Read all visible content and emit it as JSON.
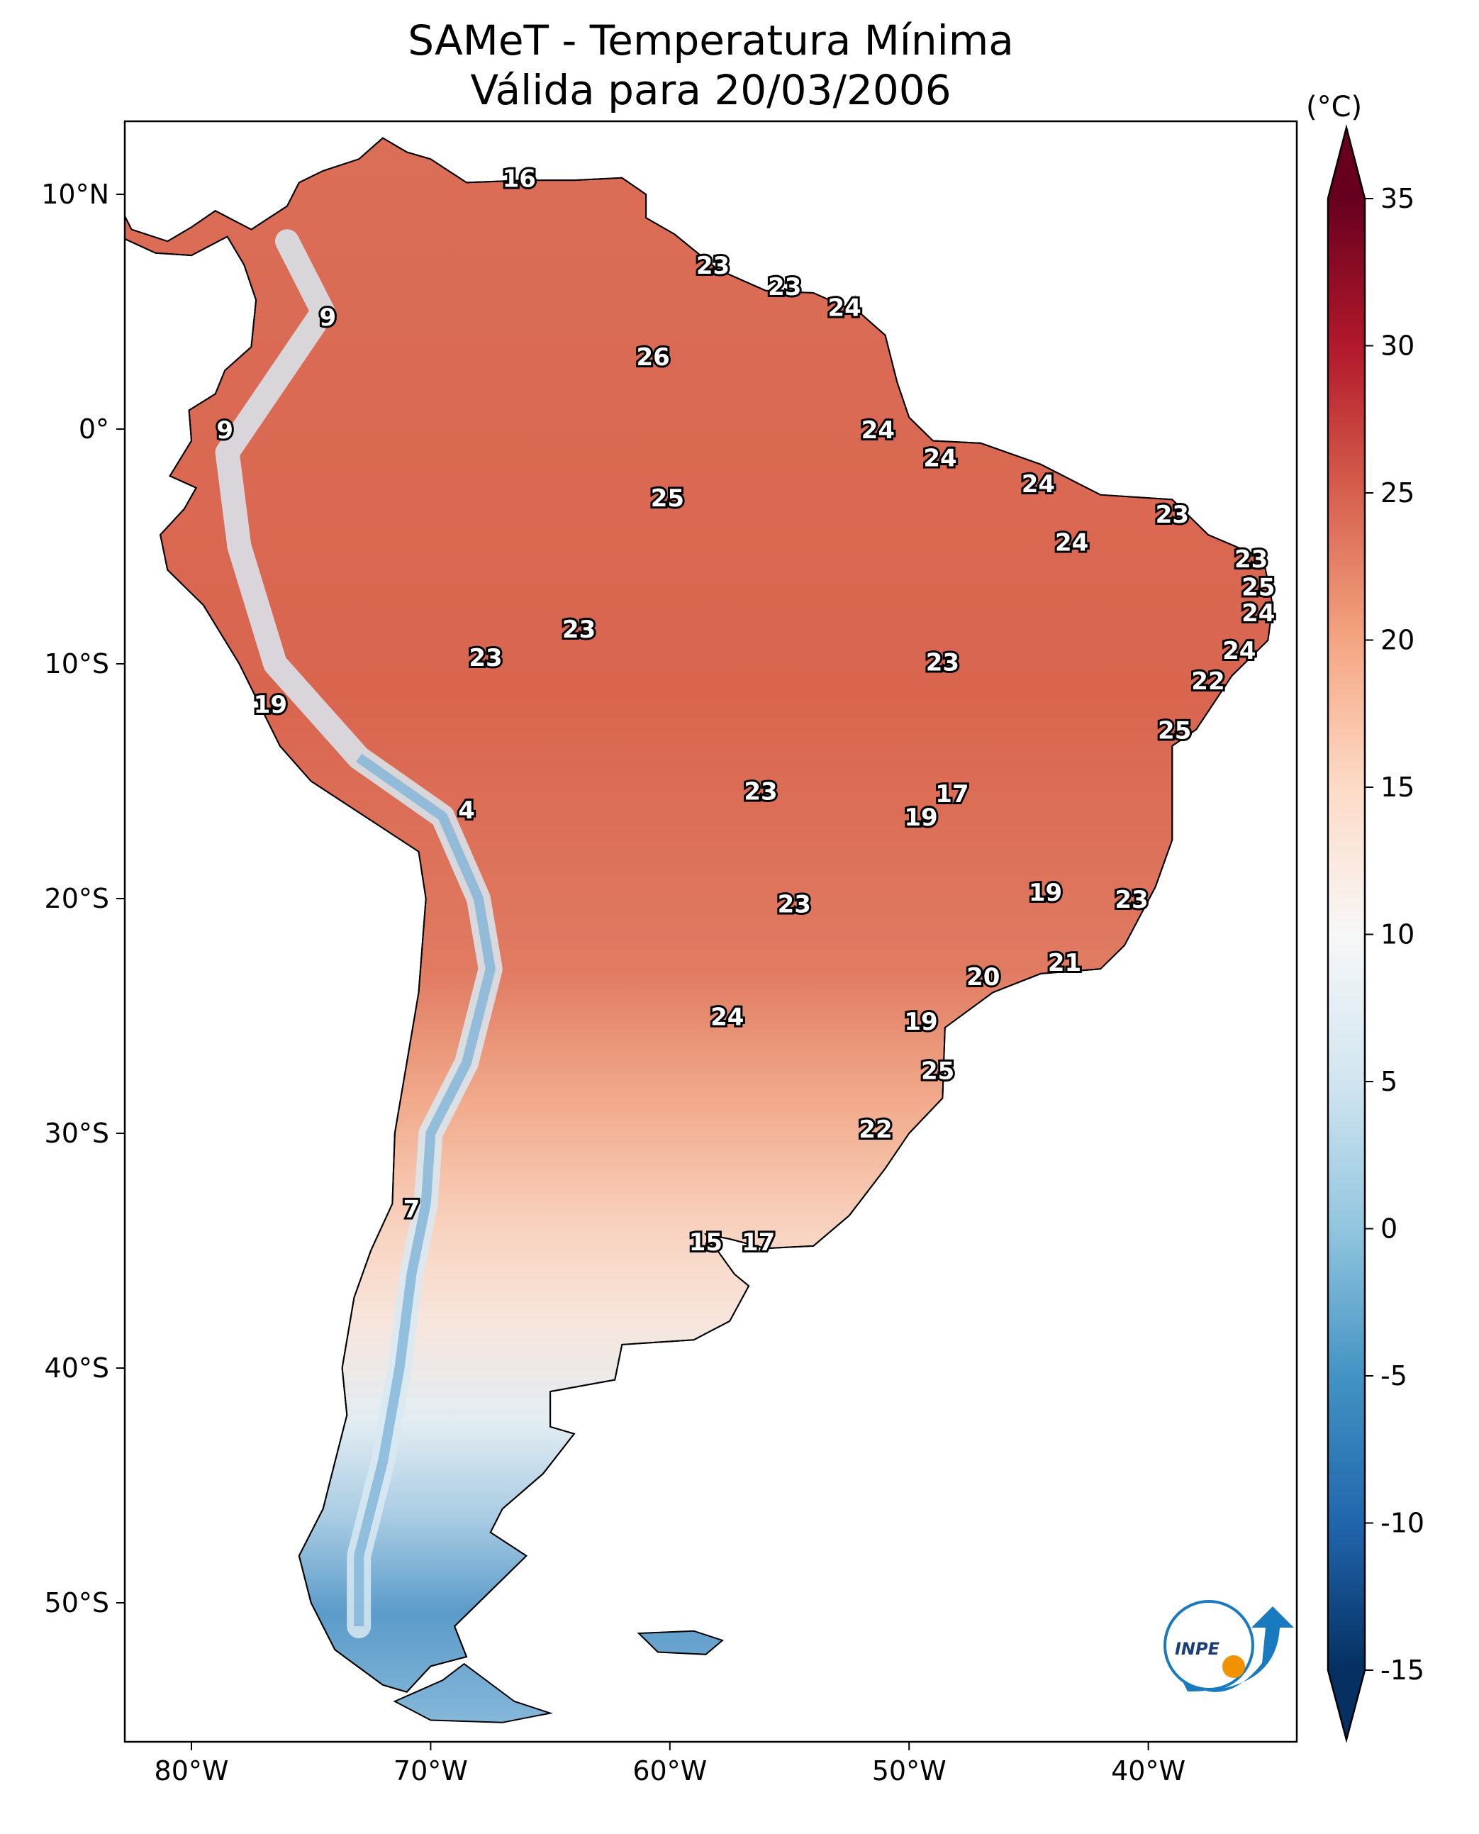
{
  "title": {
    "line1": "SAMeT - Temperatura Mínima",
    "line2": "Válida para 20/03/2006"
  },
  "map": {
    "lon_ticks": [
      {
        "value": -80,
        "label": "80°W"
      },
      {
        "value": -70,
        "label": "70°W"
      },
      {
        "value": -60,
        "label": "60°W"
      },
      {
        "value": -50,
        "label": "50°W"
      },
      {
        "value": -40,
        "label": "40°W"
      }
    ],
    "lat_ticks": [
      {
        "value": 10,
        "label": "10°N"
      },
      {
        "value": 0,
        "label": "0°"
      },
      {
        "value": -10,
        "label": "10°S"
      },
      {
        "value": -20,
        "label": "20°S"
      },
      {
        "value": -30,
        "label": "30°S"
      },
      {
        "value": -40,
        "label": "40°S"
      },
      {
        "value": -50,
        "label": "50°S"
      }
    ],
    "station_labels": [
      {
        "lon": -66.3,
        "lat": 10.6,
        "value": "16"
      },
      {
        "lon": -58.2,
        "lat": 6.9,
        "value": "23"
      },
      {
        "lon": -55.2,
        "lat": 6.0,
        "value": "23"
      },
      {
        "lon": -52.7,
        "lat": 5.1,
        "value": "24"
      },
      {
        "lon": -74.3,
        "lat": 4.7,
        "value": "9"
      },
      {
        "lon": -60.7,
        "lat": 3.0,
        "value": "26"
      },
      {
        "lon": -78.6,
        "lat": -0.1,
        "value": "9"
      },
      {
        "lon": -51.3,
        "lat": -0.1,
        "value": "24"
      },
      {
        "lon": -48.7,
        "lat": -1.3,
        "value": "24"
      },
      {
        "lon": -60.1,
        "lat": -3.0,
        "value": "25"
      },
      {
        "lon": -44.6,
        "lat": -2.4,
        "value": "24"
      },
      {
        "lon": -39.0,
        "lat": -3.7,
        "value": "23"
      },
      {
        "lon": -43.2,
        "lat": -4.9,
        "value": "24"
      },
      {
        "lon": -35.7,
        "lat": -5.6,
        "value": "23"
      },
      {
        "lon": -35.4,
        "lat": -6.8,
        "value": "25"
      },
      {
        "lon": -35.4,
        "lat": -7.9,
        "value": "24"
      },
      {
        "lon": -63.8,
        "lat": -8.6,
        "value": "23"
      },
      {
        "lon": -67.7,
        "lat": -9.8,
        "value": "23"
      },
      {
        "lon": -48.6,
        "lat": -10.0,
        "value": "23"
      },
      {
        "lon": -36.2,
        "lat": -9.5,
        "value": "24"
      },
      {
        "lon": -37.5,
        "lat": -10.8,
        "value": "22"
      },
      {
        "lon": -76.7,
        "lat": -11.8,
        "value": "19"
      },
      {
        "lon": -38.9,
        "lat": -12.9,
        "value": "25"
      },
      {
        "lon": -56.2,
        "lat": -15.5,
        "value": "23"
      },
      {
        "lon": -48.2,
        "lat": -15.6,
        "value": "17"
      },
      {
        "lon": -49.5,
        "lat": -16.6,
        "value": "19"
      },
      {
        "lon": -68.5,
        "lat": -16.3,
        "value": "4"
      },
      {
        "lon": -44.3,
        "lat": -19.8,
        "value": "19"
      },
      {
        "lon": -40.7,
        "lat": -20.1,
        "value": "23"
      },
      {
        "lon": -54.8,
        "lat": -20.3,
        "value": "23"
      },
      {
        "lon": -43.5,
        "lat": -22.8,
        "value": "21"
      },
      {
        "lon": -46.9,
        "lat": -23.4,
        "value": "20"
      },
      {
        "lon": -57.6,
        "lat": -25.1,
        "value": "24"
      },
      {
        "lon": -49.5,
        "lat": -25.3,
        "value": "19"
      },
      {
        "lon": -48.8,
        "lat": -27.4,
        "value": "25"
      },
      {
        "lon": -51.4,
        "lat": -29.9,
        "value": "22"
      },
      {
        "lon": -70.8,
        "lat": -33.3,
        "value": "7"
      },
      {
        "lon": -58.5,
        "lat": -34.7,
        "value": "15"
      },
      {
        "lon": -56.3,
        "lat": -34.7,
        "value": "17"
      }
    ]
  },
  "colorbar": {
    "unit": "(°C)",
    "range": [
      -15,
      35
    ],
    "extend": "both",
    "ticks": [
      35,
      30,
      25,
      20,
      15,
      10,
      5,
      0,
      -5,
      -10,
      -15
    ],
    "tick_labels": [
      "35",
      "30",
      "25",
      "20",
      "15",
      "10",
      "5",
      "0",
      "-5",
      "-10",
      "-15"
    ],
    "colormap": [
      "#053061",
      "#2166ac",
      "#4393c3",
      "#92c5de",
      "#d1e5f0",
      "#f7f7f7",
      "#fddbc7",
      "#f4a582",
      "#d6604d",
      "#b2182b",
      "#67001f"
    ]
  },
  "logo": {
    "text": "INPE",
    "colors": [
      "#1a7abf",
      "#f39200"
    ]
  }
}
